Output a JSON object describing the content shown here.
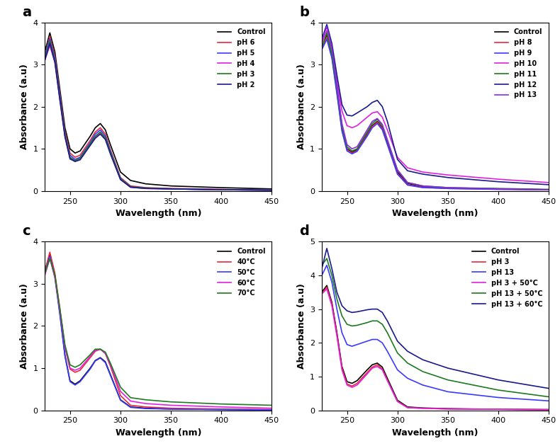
{
  "chart_data": [
    {
      "type": "line",
      "title": "a",
      "x_label": "Wavelength (nm)",
      "y_label": "Absorbance (a.u)",
      "x": [
        225,
        230,
        235,
        240,
        245,
        250,
        255,
        260,
        270,
        275,
        280,
        285,
        290,
        300,
        310,
        325,
        350,
        400,
        450
      ],
      "xlim": [
        225,
        450
      ],
      "xticks": [
        250,
        300,
        350,
        400,
        450
      ],
      "ylim": [
        0,
        4
      ],
      "yticks": [
        0,
        1,
        2,
        3,
        4
      ],
      "grid": false,
      "legend": "upper right",
      "series": [
        {
          "name": "Control",
          "color": "#000000",
          "values": [
            3.3,
            3.75,
            3.3,
            2.4,
            1.5,
            1.0,
            0.9,
            0.95,
            1.3,
            1.5,
            1.6,
            1.45,
            1.1,
            0.45,
            0.25,
            0.17,
            0.12,
            0.08,
            0.05
          ]
        },
        {
          "name": "pH 6",
          "color": "#e8283c",
          "values": [
            3.2,
            3.65,
            3.2,
            2.3,
            1.4,
            0.9,
            0.8,
            0.85,
            1.2,
            1.4,
            1.5,
            1.35,
            0.98,
            0.32,
            0.12,
            0.08,
            0.06,
            0.04,
            0.02
          ]
        },
        {
          "name": "pH 5",
          "color": "#3a3aff",
          "values": [
            3.2,
            3.6,
            3.15,
            2.25,
            1.35,
            0.85,
            0.75,
            0.8,
            1.15,
            1.35,
            1.45,
            1.3,
            0.95,
            0.3,
            0.1,
            0.07,
            0.05,
            0.03,
            0.02
          ]
        },
        {
          "name": "pH 4",
          "color": "#e020e0",
          "values": [
            3.1,
            3.45,
            3.05,
            2.15,
            1.3,
            0.78,
            0.7,
            0.75,
            1.1,
            1.28,
            1.38,
            1.25,
            0.9,
            0.28,
            0.09,
            0.06,
            0.05,
            0.03,
            0.02
          ]
        },
        {
          "name": "pH 3",
          "color": "#1e7a1e",
          "values": [
            3.15,
            3.55,
            3.1,
            2.2,
            1.32,
            0.8,
            0.72,
            0.78,
            1.12,
            1.3,
            1.4,
            1.26,
            0.92,
            0.29,
            0.1,
            0.07,
            0.05,
            0.03,
            0.02
          ]
        },
        {
          "name": "pH 2",
          "color": "#1a1a8c",
          "values": [
            3.1,
            3.5,
            3.05,
            2.15,
            1.28,
            0.76,
            0.7,
            0.74,
            1.08,
            1.25,
            1.35,
            1.22,
            0.88,
            0.27,
            0.09,
            0.06,
            0.05,
            0.03,
            0.02
          ]
        }
      ]
    },
    {
      "type": "line",
      "title": "b",
      "x_label": "Wavelength (nm)",
      "y_label": "Absorbance (a.u)",
      "x": [
        225,
        230,
        235,
        240,
        245,
        250,
        255,
        260,
        270,
        275,
        280,
        285,
        290,
        300,
        310,
        325,
        350,
        400,
        450
      ],
      "xlim": [
        225,
        450
      ],
      "xticks": [
        250,
        300,
        350,
        400,
        450
      ],
      "ylim": [
        0,
        4
      ],
      "yticks": [
        0,
        1,
        2,
        3,
        4
      ],
      "grid": false,
      "legend": "upper right",
      "series": [
        {
          "name": "Control",
          "color": "#000000",
          "values": [
            3.4,
            3.7,
            3.2,
            2.4,
            1.5,
            1.0,
            0.92,
            0.98,
            1.35,
            1.55,
            1.65,
            1.5,
            1.15,
            0.45,
            0.18,
            0.1,
            0.07,
            0.05,
            0.03
          ]
        },
        {
          "name": "pH 8",
          "color": "#e8283c",
          "values": [
            3.4,
            3.65,
            3.2,
            2.35,
            1.45,
            0.98,
            0.9,
            0.96,
            1.33,
            1.53,
            1.63,
            1.48,
            1.12,
            0.42,
            0.15,
            0.09,
            0.06,
            0.04,
            0.03
          ]
        },
        {
          "name": "pH 9",
          "color": "#3a3aff",
          "values": [
            3.35,
            3.6,
            3.15,
            2.3,
            1.42,
            0.95,
            0.88,
            0.94,
            1.3,
            1.5,
            1.6,
            1.45,
            1.1,
            0.4,
            0.14,
            0.08,
            0.06,
            0.04,
            0.03
          ]
        },
        {
          "name": "pH 10",
          "color": "#e020e0",
          "values": [
            3.5,
            3.8,
            3.35,
            2.6,
            1.9,
            1.55,
            1.5,
            1.55,
            1.75,
            1.85,
            1.88,
            1.75,
            1.45,
            0.8,
            0.55,
            0.45,
            0.38,
            0.28,
            0.2
          ]
        },
        {
          "name": "pH 11",
          "color": "#1e7a1e",
          "values": [
            3.4,
            3.75,
            3.25,
            2.45,
            1.55,
            1.05,
            0.95,
            1.0,
            1.4,
            1.6,
            1.7,
            1.55,
            1.2,
            0.5,
            0.2,
            0.12,
            0.08,
            0.06,
            0.04
          ]
        },
        {
          "name": "pH 12",
          "color": "#1a1a8c",
          "values": [
            3.6,
            3.95,
            3.5,
            2.75,
            2.05,
            1.8,
            1.78,
            1.85,
            2.0,
            2.1,
            2.15,
            2.0,
            1.65,
            0.75,
            0.48,
            0.4,
            0.32,
            0.22,
            0.15
          ]
        },
        {
          "name": "pH 13",
          "color": "#8a2be2",
          "values": [
            3.55,
            3.9,
            3.4,
            2.5,
            1.6,
            1.1,
            1.0,
            1.05,
            1.45,
            1.65,
            1.72,
            1.58,
            1.22,
            0.5,
            0.2,
            0.12,
            0.08,
            0.05,
            0.03
          ]
        }
      ]
    },
    {
      "type": "line",
      "title": "c",
      "x_label": "Wavelength (nm)",
      "y_label": "Absorbance (a.u)",
      "x": [
        225,
        230,
        235,
        240,
        245,
        250,
        255,
        260,
        270,
        275,
        280,
        285,
        290,
        300,
        310,
        325,
        350,
        400,
        450
      ],
      "xlim": [
        225,
        450
      ],
      "xticks": [
        250,
        300,
        350,
        400,
        450
      ],
      "ylim": [
        0,
        4
      ],
      "yticks": [
        0,
        1,
        2,
        3,
        4
      ],
      "grid": false,
      "legend": "upper right",
      "series": [
        {
          "name": "Control",
          "color": "#000000",
          "values": [
            3.3,
            3.7,
            3.2,
            2.3,
            1.3,
            0.7,
            0.62,
            0.7,
            1.0,
            1.18,
            1.25,
            1.15,
            0.85,
            0.25,
            0.08,
            0.05,
            0.03,
            0.02,
            0.01
          ]
        },
        {
          "name": "40°C",
          "color": "#e8283c",
          "values": [
            3.3,
            3.75,
            3.25,
            2.4,
            1.5,
            0.98,
            0.9,
            0.95,
            1.25,
            1.4,
            1.45,
            1.35,
            1.05,
            0.35,
            0.12,
            0.08,
            0.05,
            0.03,
            0.02
          ]
        },
        {
          "name": "50°C",
          "color": "#3a3aff",
          "values": [
            3.25,
            3.65,
            3.15,
            2.25,
            1.28,
            0.68,
            0.6,
            0.68,
            0.98,
            1.17,
            1.24,
            1.13,
            0.83,
            0.24,
            0.07,
            0.04,
            0.03,
            0.02,
            0.01
          ]
        },
        {
          "name": "60°C",
          "color": "#e020e0",
          "values": [
            3.2,
            3.6,
            3.15,
            2.35,
            1.5,
            1.0,
            0.95,
            1.0,
            1.28,
            1.42,
            1.45,
            1.35,
            1.08,
            0.45,
            0.22,
            0.16,
            0.12,
            0.08,
            0.05
          ]
        },
        {
          "name": "70°C",
          "color": "#1e7a1e",
          "values": [
            3.25,
            3.6,
            3.2,
            2.4,
            1.55,
            1.08,
            1.02,
            1.08,
            1.32,
            1.45,
            1.45,
            1.38,
            1.12,
            0.55,
            0.3,
            0.25,
            0.2,
            0.15,
            0.12
          ]
        }
      ]
    },
    {
      "type": "line",
      "title": "d",
      "x_label": "Wavelength (nm)",
      "y_label": "Absorbance (a.u)",
      "x": [
        225,
        230,
        235,
        240,
        245,
        250,
        255,
        260,
        270,
        275,
        280,
        285,
        290,
        300,
        310,
        325,
        350,
        400,
        450
      ],
      "xlim": [
        225,
        450
      ],
      "xticks": [
        250,
        300,
        350,
        400,
        450
      ],
      "ylim": [
        0,
        5
      ],
      "yticks": [
        0,
        1,
        2,
        3,
        4,
        5
      ],
      "grid": false,
      "legend": "upper right",
      "series": [
        {
          "name": "Control",
          "color": "#000000",
          "values": [
            3.5,
            3.7,
            3.2,
            2.3,
            1.3,
            0.85,
            0.8,
            0.88,
            1.2,
            1.35,
            1.4,
            1.28,
            0.95,
            0.3,
            0.1,
            0.07,
            0.05,
            0.03,
            0.02
          ]
        },
        {
          "name": "pH 3",
          "color": "#e8283c",
          "values": [
            3.45,
            3.65,
            3.15,
            2.25,
            1.25,
            0.78,
            0.72,
            0.8,
            1.12,
            1.28,
            1.35,
            1.22,
            0.9,
            0.27,
            0.08,
            0.06,
            0.04,
            0.03,
            0.02
          ]
        },
        {
          "name": "pH 13",
          "color": "#3a3aff",
          "values": [
            4.0,
            4.3,
            3.8,
            3.0,
            2.3,
            1.95,
            1.9,
            1.95,
            2.05,
            2.1,
            2.1,
            2.0,
            1.75,
            1.2,
            0.95,
            0.75,
            0.55,
            0.38,
            0.28
          ]
        },
        {
          "name": "pH 3 + 50°C",
          "color": "#e020e0",
          "values": [
            3.45,
            3.6,
            3.1,
            2.2,
            1.2,
            0.75,
            0.68,
            0.75,
            1.08,
            1.25,
            1.3,
            1.2,
            0.88,
            0.26,
            0.08,
            0.06,
            0.04,
            0.03,
            0.02
          ]
        },
        {
          "name": "pH 13 + 50°C",
          "color": "#1e7a1e",
          "values": [
            4.3,
            4.5,
            4.0,
            3.3,
            2.8,
            2.55,
            2.5,
            2.52,
            2.6,
            2.65,
            2.65,
            2.55,
            2.3,
            1.7,
            1.4,
            1.15,
            0.9,
            0.6,
            0.4
          ]
        },
        {
          "name": "pH 13 + 60°C",
          "color": "#1a1a8c",
          "values": [
            4.2,
            4.8,
            4.2,
            3.5,
            3.1,
            2.95,
            2.9,
            2.92,
            2.98,
            3.0,
            3.0,
            2.9,
            2.65,
            2.05,
            1.75,
            1.5,
            1.25,
            0.9,
            0.65
          ]
        }
      ]
    }
  ]
}
